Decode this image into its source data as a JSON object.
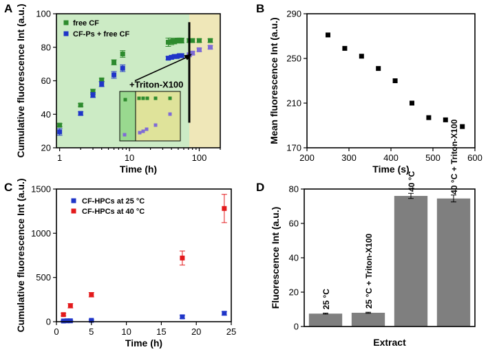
{
  "chart_data": [
    {
      "panel": "A",
      "type": "scatter",
      "xscale": "log",
      "xlim": [
        0.9,
        200
      ],
      "ylim": [
        20,
        100
      ],
      "xticks": [
        1,
        10,
        100
      ],
      "yticks": [
        20,
        40,
        60,
        80,
        100
      ],
      "xlabel": "Time (h)",
      "ylabel": "Cumulative fluorescence Int (a.u.)",
      "annotation": "+Triton-X100",
      "annotation_time": 72,
      "regions": [
        {
          "name": "before-triton",
          "from": 0.9,
          "to": 72,
          "color": "#ccebc5"
        },
        {
          "name": "after-triton",
          "from": 72,
          "to": 200,
          "color": "#efe7b8"
        }
      ],
      "series": [
        {
          "name": "free CF",
          "color": "#2e8b2e",
          "x": [
            1,
            2,
            3,
            4,
            6,
            8,
            36,
            40,
            44,
            48,
            52,
            56,
            72,
            80,
            100,
            144
          ],
          "y": [
            33.5,
            45.5,
            53.5,
            60.5,
            71,
            76,
            83,
            83.5,
            83.5,
            84,
            84,
            84,
            84,
            84,
            84,
            84
          ],
          "err": [
            1,
            1,
            1.5,
            1,
            1.5,
            2,
            2.5,
            2,
            1.5,
            1.5,
            1.5,
            1.5,
            1,
            1,
            1,
            1
          ]
        },
        {
          "name": "CF-Ps + free CF",
          "color": "#1f35c8",
          "x": [
            1,
            2,
            3,
            4,
            6,
            8,
            36,
            40,
            44,
            48,
            52,
            56,
            72,
            80,
            100,
            144
          ],
          "y": [
            29.5,
            40.5,
            51.5,
            58,
            63.5,
            67.5,
            73.5,
            74,
            74.5,
            74.5,
            75,
            75,
            75.5,
            76.5,
            78.5,
            80
          ],
          "err": [
            2,
            1,
            1.5,
            1.5,
            2,
            2,
            1,
            1,
            1,
            1,
            1,
            1,
            1,
            1,
            1,
            1
          ]
        }
      ]
    },
    {
      "panel": "B",
      "type": "scatter",
      "xlim": [
        200,
        600
      ],
      "ylim": [
        170,
        290
      ],
      "xticks": [
        200,
        300,
        400,
        500,
        600
      ],
      "yticks": [
        170,
        210,
        250,
        290
      ],
      "xlabel": "Time (s)",
      "ylabel": "Mean fluorescence Int (a.u.)",
      "series": [
        {
          "name": "mean",
          "color": "#000000",
          "x": [
            250,
            290,
            330,
            370,
            410,
            450,
            490,
            530,
            570
          ],
          "y": [
            271,
            259,
            252,
            241,
            230,
            210,
            197,
            195,
            189
          ]
        }
      ]
    },
    {
      "panel": "C",
      "type": "scatter",
      "xlim": [
        0,
        25
      ],
      "ylim": [
        0,
        1500
      ],
      "xticks": [
        0,
        5,
        10,
        15,
        20,
        25
      ],
      "yticks": [
        0,
        500,
        1000,
        1500
      ],
      "xlabel": "Time (h)",
      "ylabel": "Cumulative fluorescence Int (a.u.)",
      "series": [
        {
          "name": "CF-HPCs at 25 °C",
          "color": "#1f35c8",
          "x": [
            1,
            1.5,
            2,
            5,
            18,
            24
          ],
          "y": [
            8,
            10,
            10,
            15,
            55,
            95
          ],
          "err": [
            5,
            5,
            5,
            8,
            20,
            20
          ]
        },
        {
          "name": "CF-HPCs at 40 °C",
          "color": "#e31a1c",
          "x": [
            1,
            2,
            5,
            18,
            24
          ],
          "y": [
            80,
            180,
            305,
            720,
            1280
          ],
          "err": [
            15,
            25,
            25,
            80,
            160
          ]
        }
      ]
    },
    {
      "panel": "D",
      "type": "bar",
      "categories": [
        "25 °C",
        "25 °C + Triton-X100",
        "40 °C",
        "40 °C + Triton-X100"
      ],
      "values": [
        7.5,
        8,
        76,
        74.5
      ],
      "err": [
        0.3,
        0.3,
        1.5,
        2
      ],
      "color": "#7f7f7f",
      "ylim": [
        0,
        80
      ],
      "yticks": [
        0,
        20,
        40,
        60,
        80
      ],
      "xlabel": "Extract",
      "ylabel": "Fluorescence Int (a.u.)"
    }
  ]
}
